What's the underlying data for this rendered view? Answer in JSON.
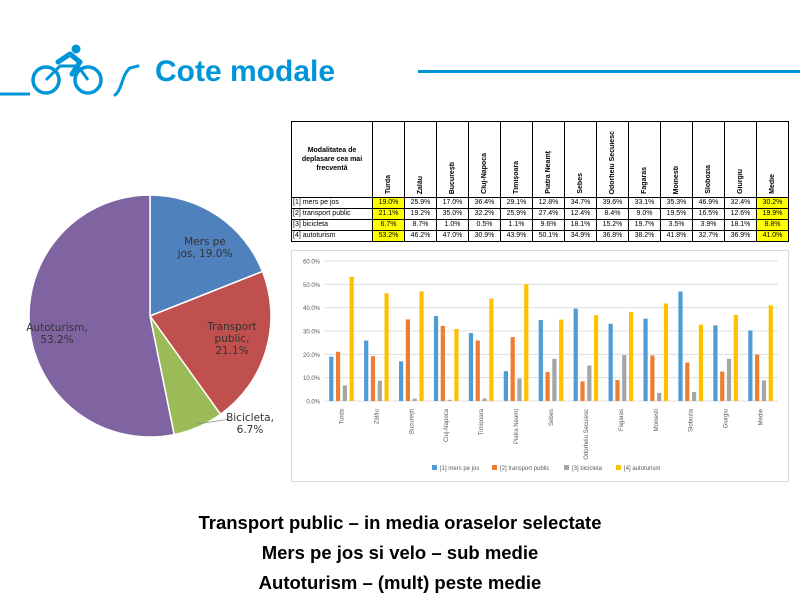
{
  "header": {
    "title": "Cote modale",
    "icon": "cyclist-icon",
    "accent": "#0095d9"
  },
  "pie_chart": {
    "type": "pie",
    "slices": [
      {
        "label": "Mers pe jos, 19.0%",
        "value": 19.0,
        "color": "#4f81bd"
      },
      {
        "label": "Transport public, 21.1%",
        "value": 21.1,
        "color": "#c0504d"
      },
      {
        "label": "Bicicleta, 6.7%",
        "value": 6.7,
        "color": "#9bbb59"
      },
      {
        "label": "Autoturism, 53.2%",
        "value": 53.2,
        "color": "#8064a2"
      }
    ]
  },
  "table": {
    "corner": "Modalitatea de deplasare cea mai frecventă",
    "columns": [
      "Turda",
      "Zalău",
      "București",
      "Cluj-Napoca",
      "Timișoara",
      "Piatra Neamț",
      "Sebes",
      "Odorheiu Secuiesc",
      "Fagaras",
      "Moinesti",
      "Slobozia",
      "Giurgiu",
      "Medie"
    ],
    "rows": [
      {
        "label": "[1] mers pe jos",
        "values": [
          "19.0%",
          "25.9%",
          "17.0%",
          "36.4%",
          "29.1%",
          "12.8%",
          "34.7%",
          "39.6%",
          "33.1%",
          "35.3%",
          "46.9%",
          "32.4%",
          "30.2%"
        ]
      },
      {
        "label": "[2] transport public",
        "values": [
          "21.1%",
          "19.2%",
          "35.0%",
          "32.2%",
          "25.9%",
          "27.4%",
          "12.4%",
          "8.4%",
          "9.0%",
          "19.5%",
          "16.5%",
          "12.6%",
          "19.9%"
        ]
      },
      {
        "label": "[3] bicicleta",
        "values": [
          "6.7%",
          "8.7%",
          "1.0%",
          "0.5%",
          "1.1%",
          "9.6%",
          "18.1%",
          "15.2%",
          "19.7%",
          "3.5%",
          "3.9%",
          "18.1%",
          "8.8%"
        ]
      },
      {
        "label": "[4] autoturism",
        "values": [
          "53.2%",
          "46.2%",
          "47.0%",
          "30.9%",
          "43.9%",
          "50.1%",
          "34.9%",
          "36.8%",
          "38.2%",
          "41.8%",
          "32.7%",
          "36.9%",
          "41.0%"
        ]
      }
    ],
    "highlight_color": "#ffff00"
  },
  "chart_data": {
    "type": "bar",
    "categories": [
      "Turda",
      "Zalău",
      "București",
      "Cluj-Napoca",
      "Timișoara",
      "Piatra Neamț",
      "Sebes",
      "Odorheiu Secuiesc",
      "Fagaras",
      "Moinesti",
      "Slobozia",
      "Giurgiu",
      "Medie"
    ],
    "series": [
      {
        "name": "[1] mers pe jos",
        "color": "#4f9bd4",
        "values": [
          19.0,
          25.9,
          17.0,
          36.4,
          29.1,
          12.8,
          34.7,
          39.6,
          33.1,
          35.3,
          46.9,
          32.4,
          30.2
        ]
      },
      {
        "name": "[2] transport public",
        "color": "#ed7d31",
        "values": [
          21.1,
          19.2,
          35.0,
          32.2,
          25.9,
          27.4,
          12.4,
          8.4,
          9.0,
          19.5,
          16.5,
          12.6,
          19.9
        ]
      },
      {
        "name": "[3] bicicleta",
        "color": "#a5a5a5",
        "values": [
          6.7,
          8.7,
          1.0,
          0.5,
          1.1,
          9.6,
          18.1,
          15.2,
          19.7,
          3.5,
          3.9,
          18.1,
          8.8
        ]
      },
      {
        "name": "[4] autoturism",
        "color": "#ffc000",
        "values": [
          53.2,
          46.2,
          47.0,
          30.9,
          43.9,
          50.1,
          34.9,
          36.8,
          38.2,
          41.8,
          32.7,
          36.9,
          41.0
        ]
      }
    ],
    "y_ticks": [
      "0.0%",
      "10.0%",
      "20.0%",
      "30.0%",
      "40.0%",
      "50.0%",
      "60.0%"
    ],
    "ylim": [
      0,
      60
    ],
    "grid": true,
    "legend_position": "bottom",
    "title": "",
    "xlabel": "",
    "ylabel": ""
  },
  "captions": [
    "Transport public – in media oraselor selectate",
    "Mers pe jos si velo – sub medie",
    "Autoturism – (mult) peste medie"
  ]
}
